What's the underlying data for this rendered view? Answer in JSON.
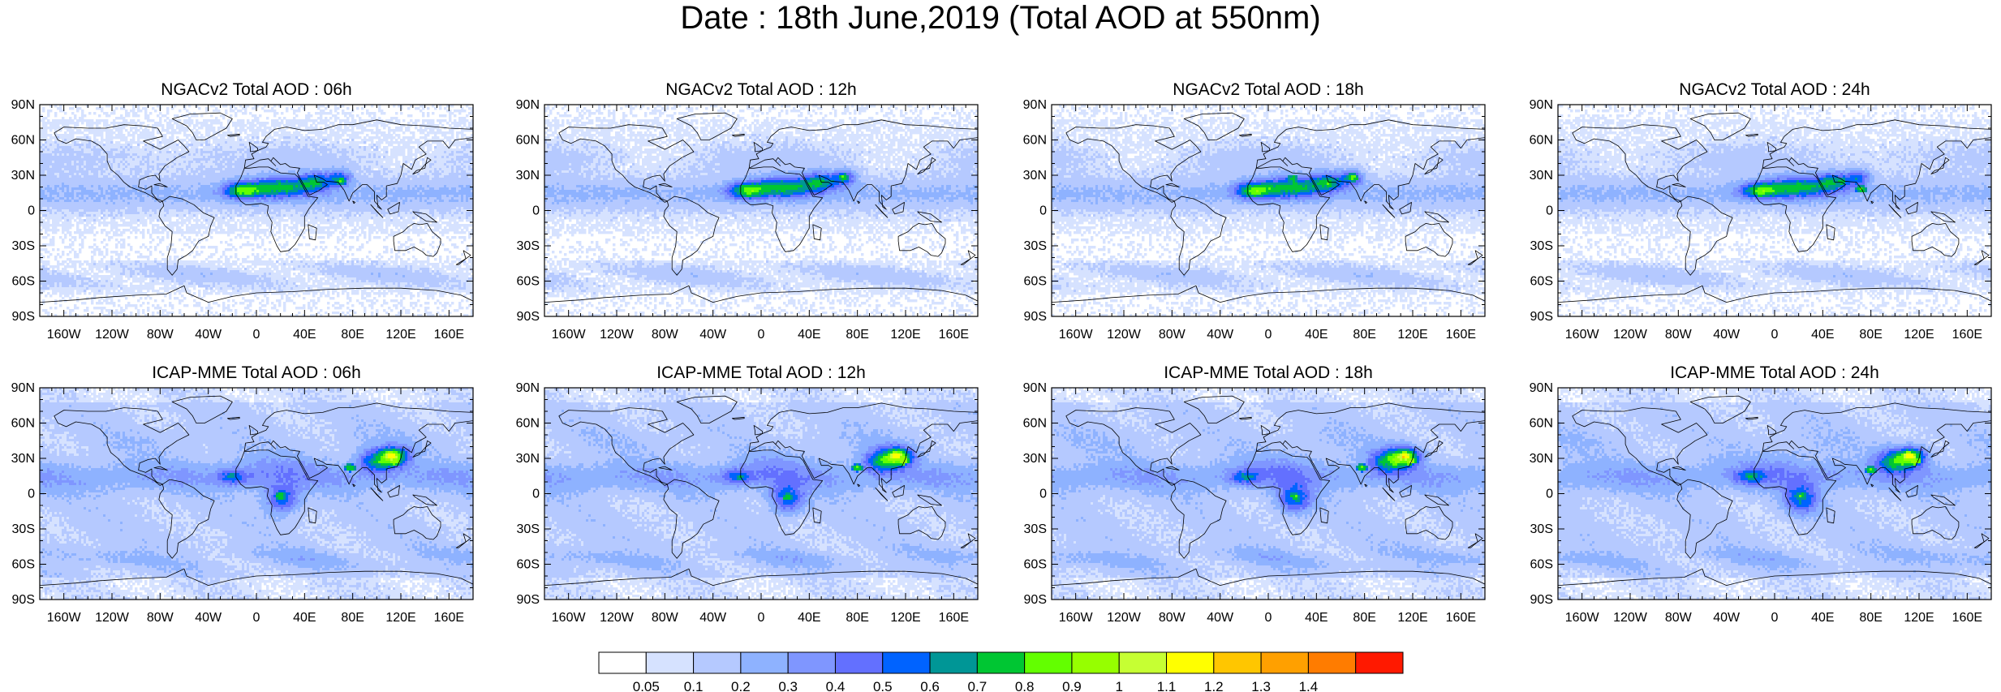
{
  "figure_title": "Date : 18th June,2019 (Total AOD at 550nm)",
  "colors": {
    "land_outline": "#000000",
    "levels": [
      "#ffffff",
      "#d6e2ff",
      "#b5c9ff",
      "#8eb2ff",
      "#7f96ff",
      "#6370ff",
      "#0063ff",
      "#009696",
      "#00c633",
      "#63ff00",
      "#96ff00",
      "#c6ff33",
      "#ffff00",
      "#ffc600",
      "#ffa000",
      "#ff7c00",
      "#ff1900"
    ]
  },
  "chart_data": [
    {
      "type": "heatmap",
      "title": "NGACv2 Total AOD : 06h",
      "x_ticks": [
        "160W",
        "120W",
        "80W",
        "40W",
        "0",
        "40E",
        "80E",
        "120E",
        "160E"
      ],
      "y_ticks": [
        "90N",
        "60N",
        "30N",
        "0",
        "30S",
        "60S",
        "90S"
      ],
      "xlim": [
        -180,
        180
      ],
      "ylim": [
        -90,
        90
      ],
      "hotspots": [
        {
          "lon": -10,
          "lat": 17,
          "aod": 0.85
        },
        {
          "lon": 25,
          "lat": 18,
          "aod": 0.8
        },
        {
          "lon": 45,
          "lat": 22,
          "aod": 0.7
        },
        {
          "lon": 70,
          "lat": 25,
          "aod": 0.8
        }
      ]
    },
    {
      "type": "heatmap",
      "title": "NGACv2 Total AOD : 12h",
      "x_ticks": [
        "160W",
        "120W",
        "80W",
        "40W",
        "0",
        "40E",
        "80E",
        "120E",
        "160E"
      ],
      "y_ticks": [
        "90N",
        "60N",
        "30N",
        "0",
        "30S",
        "60S",
        "90S"
      ],
      "xlim": [
        -180,
        180
      ],
      "ylim": [
        -90,
        90
      ],
      "hotspots": [
        {
          "lon": -10,
          "lat": 15,
          "aod": 0.85
        },
        {
          "lon": 28,
          "lat": 20,
          "aod": 0.75
        },
        {
          "lon": 50,
          "lat": 25,
          "aod": 0.75
        },
        {
          "lon": 68,
          "lat": 28,
          "aod": 0.8
        }
      ]
    },
    {
      "type": "heatmap",
      "title": "NGACv2 Total AOD : 18h",
      "x_ticks": [
        "160W",
        "120W",
        "80W",
        "40W",
        "0",
        "40E",
        "80E",
        "120E",
        "160E"
      ],
      "y_ticks": [
        "90N",
        "60N",
        "30N",
        "0",
        "30S",
        "60S",
        "90S"
      ],
      "xlim": [
        -180,
        180
      ],
      "ylim": [
        -90,
        90
      ],
      "hotspots": [
        {
          "lon": -12,
          "lat": 15,
          "aod": 0.85
        },
        {
          "lon": 20,
          "lat": 27,
          "aod": 0.8
        },
        {
          "lon": 50,
          "lat": 22,
          "aod": 0.8
        },
        {
          "lon": 70,
          "lat": 28,
          "aod": 0.85
        }
      ]
    },
    {
      "type": "heatmap",
      "title": "NGACv2 Total AOD : 24h",
      "x_ticks": [
        "160W",
        "120W",
        "80W",
        "40W",
        "0",
        "40E",
        "80E",
        "120E",
        "160E"
      ],
      "y_ticks": [
        "90N",
        "60N",
        "30N",
        "0",
        "30S",
        "60S",
        "90S"
      ],
      "xlim": [
        -180,
        180
      ],
      "ylim": [
        -90,
        90
      ],
      "hotspots": [
        {
          "lon": -12,
          "lat": 15,
          "aod": 0.85
        },
        {
          "lon": 18,
          "lat": 20,
          "aod": 0.75
        },
        {
          "lon": 55,
          "lat": 25,
          "aod": 0.8
        },
        {
          "lon": 72,
          "lat": 18,
          "aod": 0.8
        }
      ]
    },
    {
      "type": "heatmap",
      "title": "ICAP-MME Total AOD : 06h",
      "x_ticks": [
        "160W",
        "120W",
        "80W",
        "40W",
        "0",
        "40E",
        "80E",
        "120E",
        "160E"
      ],
      "y_ticks": [
        "90N",
        "60N",
        "30N",
        "0",
        "30S",
        "60S",
        "90S"
      ],
      "xlim": [
        -180,
        180
      ],
      "ylim": [
        -90,
        90
      ],
      "hotspots": [
        {
          "lon": -20,
          "lat": 15,
          "aod": 0.7
        },
        {
          "lon": 20,
          "lat": -2,
          "aod": 0.8
        },
        {
          "lon": 78,
          "lat": 22,
          "aod": 0.8
        },
        {
          "lon": 112,
          "lat": 32,
          "aod": 1.2
        },
        {
          "lon": 115,
          "lat": 28,
          "aod": 1.0
        }
      ]
    },
    {
      "type": "heatmap",
      "title": "ICAP-MME Total AOD : 12h",
      "x_ticks": [
        "160W",
        "120W",
        "80W",
        "40W",
        "0",
        "40E",
        "80E",
        "120E",
        "160E"
      ],
      "y_ticks": [
        "90N",
        "60N",
        "30N",
        "0",
        "30S",
        "60S",
        "90S"
      ],
      "xlim": [
        -180,
        180
      ],
      "ylim": [
        -90,
        90
      ],
      "hotspots": [
        {
          "lon": -18,
          "lat": 14,
          "aod": 0.7
        },
        {
          "lon": 22,
          "lat": -3,
          "aod": 0.8
        },
        {
          "lon": 80,
          "lat": 22,
          "aod": 0.8
        },
        {
          "lon": 112,
          "lat": 32,
          "aod": 1.2
        },
        {
          "lon": 118,
          "lat": 28,
          "aod": 1.0
        }
      ]
    },
    {
      "type": "heatmap",
      "title": "ICAP-MME Total AOD : 18h",
      "x_ticks": [
        "160W",
        "120W",
        "80W",
        "40W",
        "0",
        "40E",
        "80E",
        "120E",
        "160E"
      ],
      "y_ticks": [
        "90N",
        "60N",
        "30N",
        "0",
        "30S",
        "60S",
        "90S"
      ],
      "xlim": [
        -180,
        180
      ],
      "ylim": [
        -90,
        90
      ],
      "hotspots": [
        {
          "lon": -18,
          "lat": 14,
          "aod": 0.7
        },
        {
          "lon": 22,
          "lat": -2,
          "aod": 0.8
        },
        {
          "lon": 78,
          "lat": 22,
          "aod": 0.8
        },
        {
          "lon": 113,
          "lat": 32,
          "aod": 1.2
        },
        {
          "lon": 118,
          "lat": 28,
          "aod": 1.0
        }
      ]
    },
    {
      "type": "heatmap",
      "title": "ICAP-MME Total AOD : 24h",
      "x_ticks": [
        "160W",
        "120W",
        "80W",
        "40W",
        "0",
        "40E",
        "80E",
        "120E",
        "160E"
      ],
      "y_ticks": [
        "90N",
        "60N",
        "30N",
        "0",
        "30S",
        "60S",
        "90S"
      ],
      "xlim": [
        -180,
        180
      ],
      "ylim": [
        -90,
        90
      ],
      "hotspots": [
        {
          "lon": -20,
          "lat": 14,
          "aod": 0.7
        },
        {
          "lon": 22,
          "lat": -2,
          "aod": 0.8
        },
        {
          "lon": 80,
          "lat": 20,
          "aod": 0.8
        },
        {
          "lon": 112,
          "lat": 32,
          "aod": 1.2
        },
        {
          "lon": 116,
          "lat": 28,
          "aod": 1.0
        }
      ]
    }
  ],
  "colorbar": {
    "labels": [
      "0.05",
      "0.1",
      "0.2",
      "0.3",
      "0.4",
      "0.5",
      "0.6",
      "0.7",
      "0.8",
      "0.9",
      "1",
      "1.1",
      "1.2",
      "1.3",
      "1.4"
    ]
  }
}
